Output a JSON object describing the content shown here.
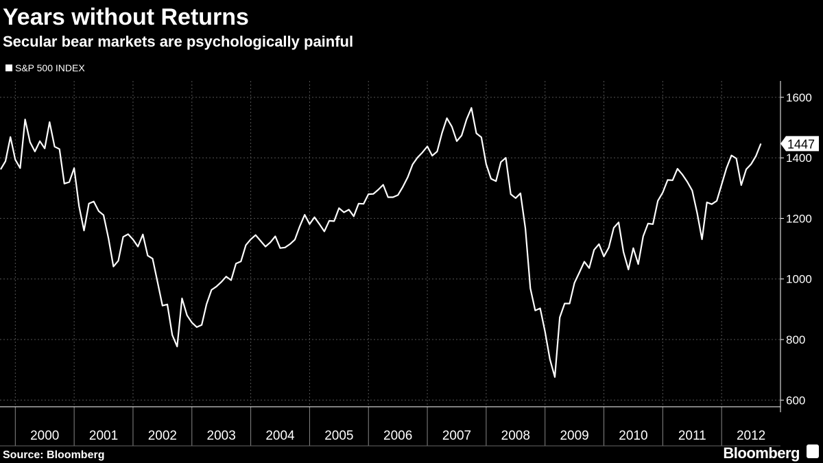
{
  "chart_data": {
    "type": "line",
    "title": "Years without Returns",
    "subtitle": "Secular bear markets are psychologically painful",
    "source": "Source: Bloomberg",
    "brand": "Bloomberg",
    "series": [
      {
        "name": "S&P 500 INDEX",
        "color": "#ffffff",
        "x": [
          1999.75,
          1999.833,
          1999.917,
          2000,
          2000.083,
          2000.167,
          2000.25,
          2000.333,
          2000.417,
          2000.5,
          2000.583,
          2000.667,
          2000.75,
          2000.833,
          2000.917,
          2001,
          2001.083,
          2001.167,
          2001.25,
          2001.333,
          2001.417,
          2001.5,
          2001.583,
          2001.667,
          2001.75,
          2001.833,
          2001.917,
          2002,
          2002.083,
          2002.167,
          2002.25,
          2002.333,
          2002.417,
          2002.5,
          2002.583,
          2002.667,
          2002.75,
          2002.833,
          2002.917,
          2003,
          2003.083,
          2003.167,
          2003.25,
          2003.333,
          2003.417,
          2003.5,
          2003.583,
          2003.667,
          2003.75,
          2003.833,
          2003.917,
          2004,
          2004.083,
          2004.167,
          2004.25,
          2004.333,
          2004.417,
          2004.5,
          2004.583,
          2004.667,
          2004.75,
          2004.833,
          2004.917,
          2005,
          2005.083,
          2005.167,
          2005.25,
          2005.333,
          2005.417,
          2005.5,
          2005.583,
          2005.667,
          2005.75,
          2005.833,
          2005.917,
          2006,
          2006.083,
          2006.167,
          2006.25,
          2006.333,
          2006.417,
          2006.5,
          2006.583,
          2006.667,
          2006.75,
          2006.833,
          2006.917,
          2007,
          2007.083,
          2007.167,
          2007.25,
          2007.333,
          2007.417,
          2007.5,
          2007.583,
          2007.667,
          2007.75,
          2007.833,
          2007.917,
          2008,
          2008.083,
          2008.167,
          2008.25,
          2008.333,
          2008.417,
          2008.5,
          2008.583,
          2008.667,
          2008.75,
          2008.833,
          2008.917,
          2009,
          2009.083,
          2009.167,
          2009.25,
          2009.333,
          2009.417,
          2009.5,
          2009.583,
          2009.667,
          2009.75,
          2009.833,
          2009.917,
          2010,
          2010.083,
          2010.167,
          2010.25,
          2010.333,
          2010.417,
          2010.5,
          2010.583,
          2010.667,
          2010.75,
          2010.833,
          2010.917,
          2011,
          2011.083,
          2011.167,
          2011.25,
          2011.333,
          2011.417,
          2011.5,
          2011.583,
          2011.667,
          2011.75,
          2011.833,
          2011.917,
          2012,
          2012.083,
          2012.167,
          2012.25,
          2012.333,
          2012.417,
          2012.5,
          2012.583,
          2012.667
        ],
        "values": [
          1362,
          1389,
          1469,
          1394,
          1366,
          1527,
          1452,
          1421,
          1455,
          1431,
          1518,
          1437,
          1429,
          1315,
          1320,
          1366,
          1240,
          1160,
          1249,
          1256,
          1224,
          1211,
          1134,
          1041,
          1060,
          1139,
          1148,
          1130,
          1107,
          1147,
          1077,
          1067,
          990,
          912,
          916,
          815,
          777,
          936,
          880,
          856,
          841,
          848,
          917,
          964,
          975,
          990,
          1008,
          996,
          1051,
          1058,
          1112,
          1131,
          1145,
          1126,
          1107,
          1121,
          1141,
          1102,
          1104,
          1115,
          1130,
          1174,
          1212,
          1181,
          1204,
          1181,
          1157,
          1192,
          1191,
          1234,
          1220,
          1229,
          1207,
          1249,
          1248,
          1280,
          1281,
          1295,
          1311,
          1270,
          1270,
          1277,
          1304,
          1336,
          1378,
          1401,
          1418,
          1438,
          1407,
          1421,
          1482,
          1531,
          1503,
          1455,
          1474,
          1527,
          1565,
          1481,
          1468,
          1379,
          1331,
          1323,
          1386,
          1400,
          1280,
          1267,
          1283,
          1166,
          969,
          896,
          903,
          826,
          735,
          676,
          873,
          919,
          919,
          987,
          1021,
          1057,
          1036,
          1096,
          1115,
          1074,
          1104,
          1169,
          1187,
          1089,
          1031,
          1102,
          1049,
          1141,
          1183,
          1181,
          1258,
          1286,
          1327,
          1326,
          1364,
          1345,
          1321,
          1292,
          1219,
          1131,
          1253,
          1247,
          1258,
          1312,
          1366,
          1408,
          1398,
          1310,
          1362,
          1379,
          1406,
          1447
        ]
      }
    ],
    "xlim": [
      1999.74,
      2013
    ],
    "xticks": [
      {
        "value": 2000,
        "label": "2000"
      },
      {
        "value": 2001,
        "label": "2001"
      },
      {
        "value": 2002,
        "label": "2002"
      },
      {
        "value": 2003,
        "label": "2003"
      },
      {
        "value": 2004,
        "label": "2004"
      },
      {
        "value": 2005,
        "label": "2005"
      },
      {
        "value": 2006,
        "label": "2006"
      },
      {
        "value": 2007,
        "label": "2007"
      },
      {
        "value": 2008,
        "label": "2008"
      },
      {
        "value": 2009,
        "label": "2009"
      },
      {
        "value": 2010,
        "label": "2010"
      },
      {
        "value": 2011,
        "label": "2011"
      },
      {
        "value": 2012,
        "label": "2012"
      }
    ],
    "ylim": [
      578,
      1654
    ],
    "yticks": [
      600,
      800,
      1000,
      1200,
      1400,
      1600
    ],
    "grid": true,
    "legend": "top-left"
  }
}
